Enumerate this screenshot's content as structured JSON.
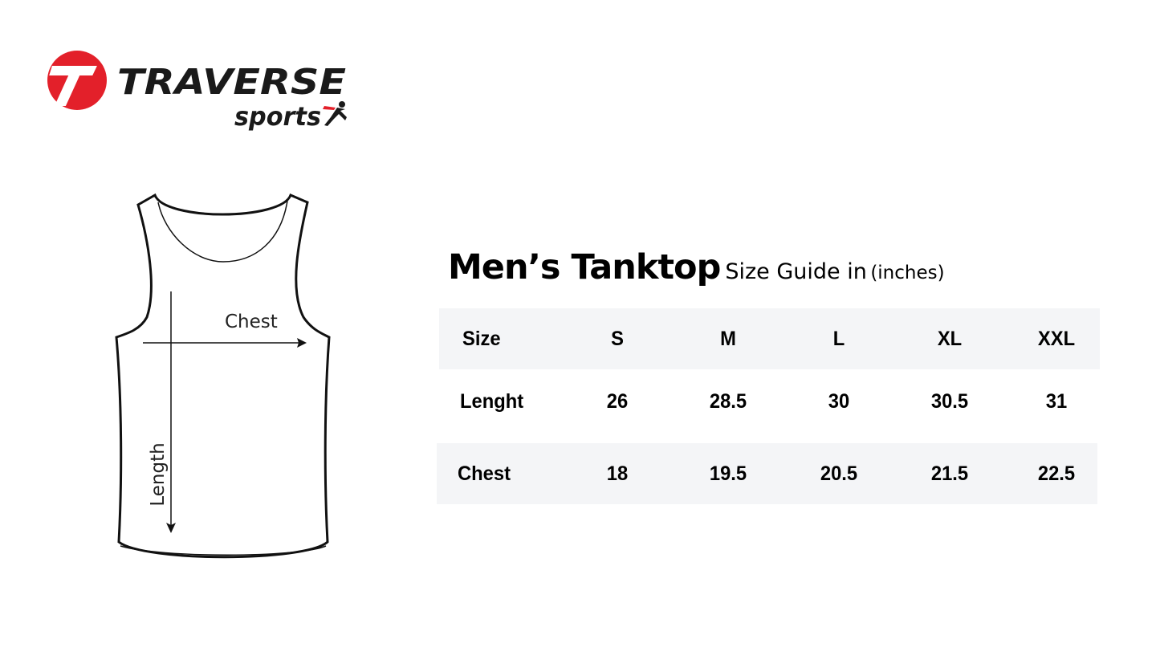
{
  "logo": {
    "brand": "TRAVERSE",
    "sub": "sports",
    "colors": {
      "red": "#e3202a",
      "black": "#1a1a1a"
    }
  },
  "diagram": {
    "chest_label": "Chest",
    "length_label": "Length"
  },
  "title": {
    "main": "Men’s Tanktop",
    "sub": "Size Guide in",
    "unit": "(inches)"
  },
  "table": {
    "header": [
      "Size",
      "S",
      "M",
      "L",
      "XL",
      "XXL"
    ],
    "rows": [
      [
        "Lenght",
        "26",
        "28.5",
        "30",
        "30.5",
        "31"
      ],
      [
        "Chest",
        "18",
        "19.5",
        "20.5",
        "21.5",
        "22.5"
      ]
    ],
    "shade_color": "#f4f5f7"
  }
}
